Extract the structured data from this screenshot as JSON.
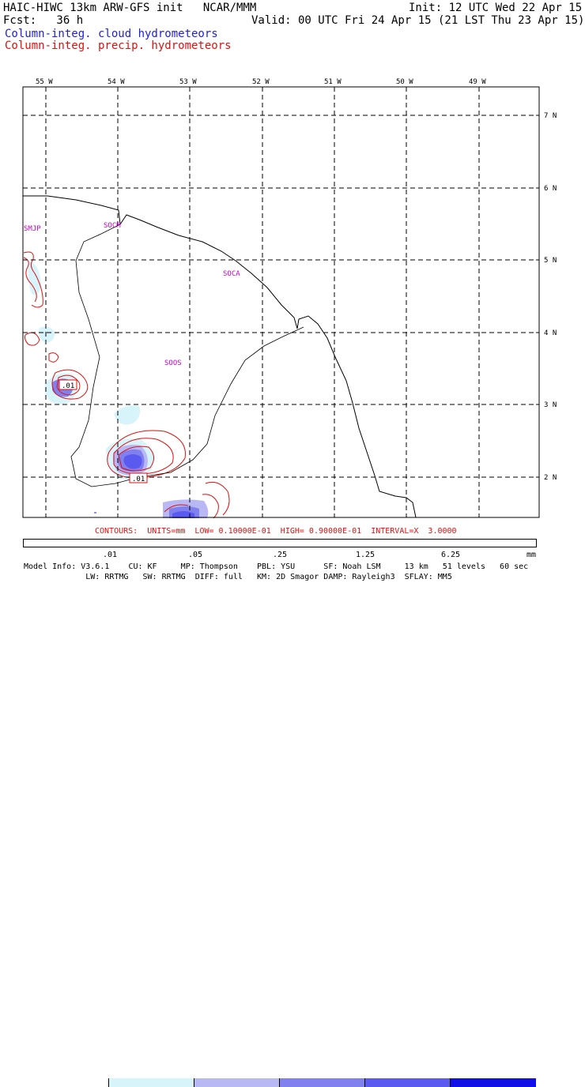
{
  "header": {
    "title_left": "HAIC-HIWC 13km ARW-GFS init   NCAR/MMM",
    "init": "Init: 12 UTC Wed 22 Apr 15",
    "fcst_label": "Fcst:   36 h",
    "valid": "Valid: 00 UTC Fri 24 Apr 15 (21 LST Thu 23 Apr 15)",
    "legend_cloud": "Column-integ. cloud hydrometeors",
    "legend_precip": "Column-integ. precip. hydrometeors"
  },
  "map": {
    "lon_labels": [
      "55 W",
      "54 W",
      "53 W",
      "52 W",
      "51 W",
      "50 W",
      "49 W"
    ],
    "lat_labels": [
      "7 N",
      "6 N",
      "5 N",
      "4 N",
      "3 N",
      "2 N"
    ],
    "region_labels": [
      "SMJP",
      "SOCM",
      "SOCA",
      "SOOS"
    ],
    "contour_labels": [
      ".01",
      ".01"
    ]
  },
  "contours_line": "CONTOURS:  UNITS=mm  LOW= 0.10000E-01  HIGH= 0.90000E-01  INTERVAL=X  3.0000",
  "colorbar": {
    "ticks": [
      ".01",
      ".05",
      ".25",
      "1.25",
      "6.25"
    ],
    "unit": "mm",
    "colors": [
      "#ffffff",
      "#d8f4fb",
      "#b8b8f4",
      "#8080ee",
      "#5a5af0",
      "#1010e6"
    ]
  },
  "footer": {
    "line1": "Model Info: V3.6.1    CU: KF     MP: Thompson    PBL: YSU      SF: Noah LSM     13 km   51 levels   60 sec",
    "line2": "             LW: RRTMG   SW: RRTMG  DIFF: full   KM: 2D Smagor DAMP: Rayleigh3  SFLAY: MM5"
  }
}
